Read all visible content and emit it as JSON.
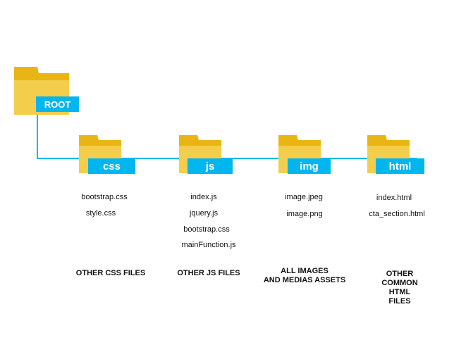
{
  "colors": {
    "connector": "#1bb8e6",
    "label_bg": "#00b6ee",
    "folder_back": "#e8b515",
    "folder_front": "#f3cd4c"
  },
  "root": {
    "label": "ROOT",
    "icon": "folder-icon"
  },
  "folders": [
    {
      "label": "css",
      "icon": "folder-icon",
      "files": [
        "bootstrap.css",
        "style.css"
      ],
      "caption": "OTHER CSS FILES"
    },
    {
      "label": "js",
      "icon": "folder-icon",
      "files": [
        "index.js",
        "jquery.js",
        "bootstrap.css",
        "mainFunction.js"
      ],
      "caption": "OTHER JS FILES"
    },
    {
      "label": "img",
      "icon": "folder-icon",
      "files": [
        "image.jpeg",
        "image.png"
      ],
      "caption": "ALL IMAGES\nAND MEDIAS ASSETS"
    },
    {
      "label": "html",
      "icon": "folder-icon",
      "files": [
        "index.html",
        "cta_section.html"
      ],
      "caption": "OTHER COMMON HTML\nFILES"
    }
  ]
}
